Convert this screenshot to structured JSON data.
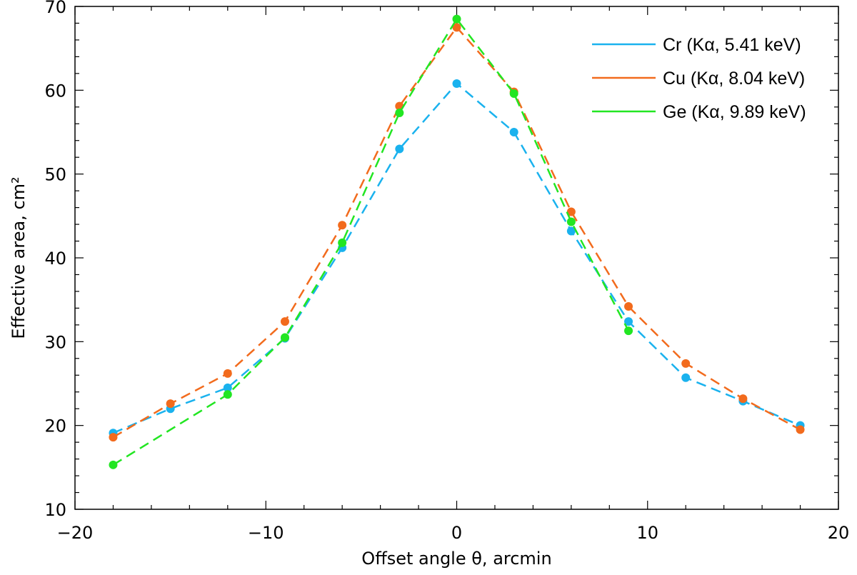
{
  "chart_data": {
    "type": "line",
    "title": "",
    "xlabel": "Offset angle θ, arcmin",
    "ylabel": "Effective area, cm²",
    "xlim": [
      -20,
      20
    ],
    "ylim": [
      10,
      70
    ],
    "x_ticks": [
      -20,
      -10,
      0,
      10,
      20
    ],
    "x_tick_labels": [
      "−20",
      "−10",
      "0",
      "10",
      "20"
    ],
    "y_ticks": [
      10,
      20,
      30,
      40,
      50,
      60,
      70
    ],
    "y_tick_labels": [
      "10",
      "20",
      "30",
      "40",
      "50",
      "60",
      "70"
    ],
    "grid": false,
    "legend_position": "top-right",
    "series": [
      {
        "name": "Cr  (Kα, 5.41 keV)",
        "color": "#1ab2ee",
        "x": [
          -18,
          -15,
          -12,
          -9,
          -6,
          -3,
          0,
          3,
          6,
          9,
          12,
          15,
          18
        ],
        "values": [
          19.1,
          22.0,
          24.5,
          30.4,
          41.2,
          53.0,
          60.8,
          55.0,
          43.2,
          32.4,
          25.7,
          22.9,
          20.0
        ]
      },
      {
        "name": "Cu (Kα, 8.04 keV)",
        "color": "#f26b1d",
        "x": [
          -18,
          -15,
          -12,
          -9,
          -6,
          -3,
          0,
          3,
          6,
          9,
          12,
          15,
          18
        ],
        "values": [
          18.6,
          22.6,
          26.2,
          32.4,
          43.9,
          58.1,
          67.5,
          59.8,
          45.5,
          34.2,
          27.4,
          23.2,
          19.5
        ]
      },
      {
        "name": "Ge (Kα, 9.89 keV)",
        "color": "#22e622",
        "x": [
          -18,
          -12,
          -9,
          -6,
          -3,
          0,
          3,
          6,
          9
        ],
        "values": [
          15.3,
          23.7,
          30.5,
          41.8,
          57.3,
          68.5,
          59.6,
          44.3,
          31.3
        ]
      }
    ]
  }
}
